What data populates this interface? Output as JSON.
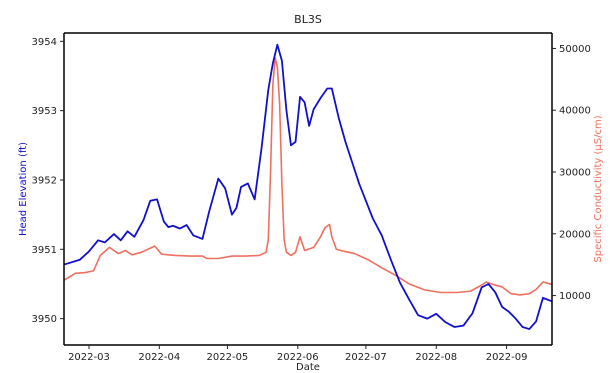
{
  "chart_data": {
    "type": "line",
    "title": "BL3S",
    "xlabel": "Date",
    "ylabel_left": "Head Elevation (ft)",
    "ylabel_right": "Specific Conductivity (µS/cm)",
    "x_ticks": [
      "2022-03",
      "2022-04",
      "2022-05",
      "2022-06",
      "2022-07",
      "2022-08",
      "2022-09"
    ],
    "y_left_ticks": [
      3950,
      3951,
      3952,
      3953,
      3954
    ],
    "y_right_ticks": [
      10000,
      20000,
      30000,
      40000,
      50000
    ],
    "xlim": [
      "2022-02-18",
      "2022-09-21"
    ],
    "ylim_left": [
      3949.62,
      3954.12
    ],
    "ylim_right": [
      2000,
      52500
    ],
    "grid": false,
    "colors": {
      "head": "#1010cc",
      "conductivity": "#f07060",
      "text": "#222222"
    },
    "series": [
      {
        "axis": "left",
        "x": [
          "2022-02-18",
          "2022-02-25",
          "2022-03-01",
          "2022-03-05",
          "2022-03-08",
          "2022-03-12",
          "2022-03-15",
          "2022-03-18",
          "2022-03-21",
          "2022-03-25",
          "2022-03-28",
          "2022-03-31",
          "2022-04-03",
          "2022-04-05",
          "2022-04-07",
          "2022-04-10",
          "2022-04-13",
          "2022-04-16",
          "2022-04-20",
          "2022-04-23",
          "2022-04-27",
          "2022-04-30",
          "2022-05-03",
          "2022-05-05",
          "2022-05-07",
          "2022-05-10",
          "2022-05-13",
          "2022-05-16",
          "2022-05-19",
          "2022-05-21",
          "2022-05-23",
          "2022-05-25",
          "2022-05-27",
          "2022-05-29",
          "2022-05-31",
          "2022-06-02",
          "2022-06-04",
          "2022-06-06",
          "2022-06-08",
          "2022-06-11",
          "2022-06-14",
          "2022-06-16",
          "2022-06-19",
          "2022-06-22",
          "2022-06-25",
          "2022-06-28",
          "2022-07-01",
          "2022-07-04",
          "2022-07-08",
          "2022-07-12",
          "2022-07-16",
          "2022-07-20",
          "2022-07-24",
          "2022-07-28",
          "2022-08-01",
          "2022-08-05",
          "2022-08-09",
          "2022-08-13",
          "2022-08-17",
          "2022-08-21",
          "2022-08-24",
          "2022-08-27",
          "2022-08-30",
          "2022-09-02",
          "2022-09-05",
          "2022-09-08",
          "2022-09-11",
          "2022-09-14",
          "2022-09-17",
          "2022-09-21"
        ],
        "y": [
          3950.78,
          3950.85,
          3950.97,
          3951.13,
          3951.1,
          3951.22,
          3951.13,
          3951.26,
          3951.18,
          3951.42,
          3951.7,
          3951.72,
          3951.4,
          3951.32,
          3951.34,
          3951.3,
          3951.35,
          3951.2,
          3951.15,
          3951.55,
          3952.02,
          3951.88,
          3951.5,
          3951.6,
          3951.9,
          3951.95,
          3951.72,
          3952.45,
          3953.3,
          3953.68,
          3953.95,
          3953.72,
          3953.0,
          3952.5,
          3952.55,
          3953.2,
          3953.12,
          3952.78,
          3953.02,
          3953.18,
          3953.32,
          3953.32,
          3952.9,
          3952.55,
          3952.25,
          3951.95,
          3951.7,
          3951.45,
          3951.2,
          3950.85,
          3950.52,
          3950.28,
          3950.05,
          3950.0,
          3950.07,
          3949.95,
          3949.88,
          3949.9,
          3950.08,
          3950.45,
          3950.5,
          3950.38,
          3950.17,
          3950.1,
          3950.0,
          3949.88,
          3949.85,
          3949.96,
          3950.3,
          3950.25
        ]
      },
      {
        "axis": "right",
        "x": [
          "2022-02-18",
          "2022-02-23",
          "2022-02-27",
          "2022-03-03",
          "2022-03-06",
          "2022-03-10",
          "2022-03-14",
          "2022-03-17",
          "2022-03-20",
          "2022-03-24",
          "2022-03-27",
          "2022-03-30",
          "2022-04-02",
          "2022-04-08",
          "2022-04-15",
          "2022-04-20",
          "2022-04-22",
          "2022-04-27",
          "2022-05-03",
          "2022-05-09",
          "2022-05-15",
          "2022-05-18",
          "2022-05-19",
          "2022-05-20",
          "2022-05-21",
          "2022-05-22",
          "2022-05-23",
          "2022-05-24",
          "2022-05-25",
          "2022-05-26",
          "2022-05-27",
          "2022-05-29",
          "2022-05-31",
          "2022-06-02",
          "2022-06-04",
          "2022-06-08",
          "2022-06-11",
          "2022-06-13",
          "2022-06-15",
          "2022-06-16",
          "2022-06-18",
          "2022-06-21",
          "2022-06-26",
          "2022-07-02",
          "2022-07-08",
          "2022-07-14",
          "2022-07-20",
          "2022-07-27",
          "2022-08-03",
          "2022-08-10",
          "2022-08-16",
          "2022-08-21",
          "2022-08-23",
          "2022-08-26",
          "2022-08-30",
          "2022-09-03",
          "2022-09-07",
          "2022-09-11",
          "2022-09-14",
          "2022-09-17",
          "2022-09-21"
        ],
        "y": [
          12500,
          13600,
          13700,
          14000,
          16500,
          17800,
          16800,
          17300,
          16600,
          17000,
          17500,
          18000,
          16700,
          16500,
          16400,
          16400,
          16000,
          16000,
          16400,
          16400,
          16500,
          17000,
          19000,
          30000,
          44000,
          48500,
          47000,
          41000,
          28000,
          19000,
          17000,
          16500,
          17000,
          19500,
          17300,
          17800,
          19500,
          21000,
          21500,
          19500,
          17500,
          17200,
          16800,
          15800,
          14500,
          13300,
          11900,
          10900,
          10500,
          10500,
          10700,
          11700,
          12200,
          11800,
          11400,
          10300,
          10100,
          10300,
          11000,
          12200,
          11800
        ]
      }
    ]
  }
}
